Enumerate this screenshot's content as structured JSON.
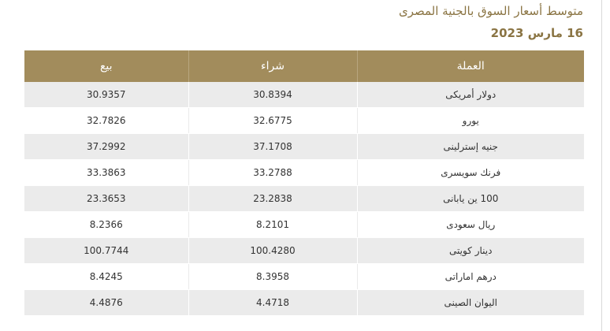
{
  "heading": "متوسط أسعار السوق بالجنية المصرى",
  "date": "16 مارس 2023",
  "table": {
    "columns": {
      "currency": "العملة",
      "buy": "شراء",
      "sell": "بيع"
    },
    "rows": [
      {
        "currency": "دولار أمريكى",
        "buy": "30.8394",
        "sell": "30.9357"
      },
      {
        "currency": "يورو",
        "buy": "32.6775",
        "sell": "32.7826"
      },
      {
        "currency": "جنيه إسترلينى",
        "buy": "37.1708",
        "sell": "37.2992"
      },
      {
        "currency": "فرنك سويسرى",
        "buy": "33.2788",
        "sell": "33.3863"
      },
      {
        "currency": "100 ين يابانى",
        "buy": "23.2838",
        "sell": "23.3653"
      },
      {
        "currency": "ريال سعودى",
        "buy": "8.2101",
        "sell": "8.2366"
      },
      {
        "currency": "دينار كويتى",
        "buy": "100.4280",
        "sell": "100.7744"
      },
      {
        "currency": "درهم اماراتى",
        "buy": "8.3958",
        "sell": "8.4245"
      },
      {
        "currency": "اليوان الصينى",
        "buy": "4.4718",
        "sell": "4.4876"
      }
    ]
  }
}
